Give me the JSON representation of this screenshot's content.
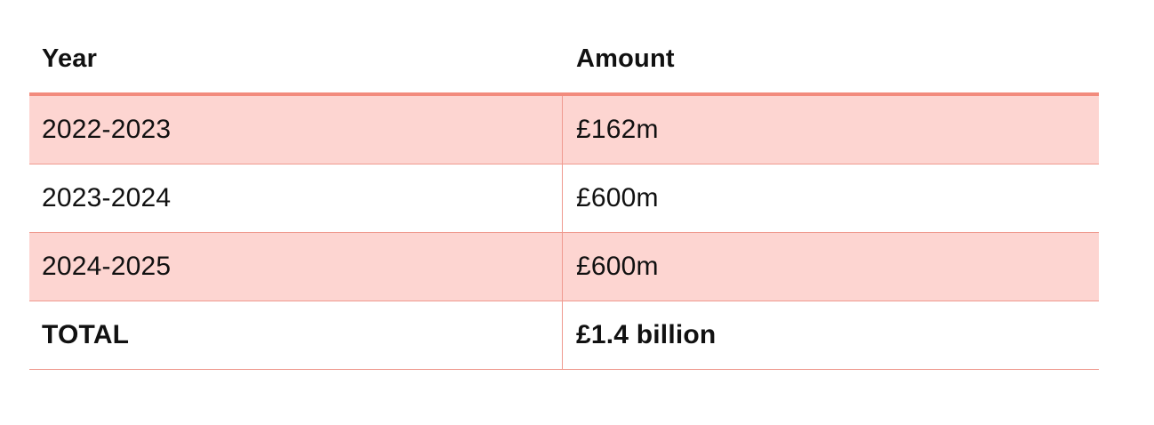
{
  "table": {
    "headers": {
      "year": "Year",
      "amount": "Amount"
    },
    "rows": [
      {
        "year": "2022-2023",
        "amount": "£162m",
        "shaded": true
      },
      {
        "year": "2023-2024",
        "amount": "£600m",
        "shaded": false
      },
      {
        "year": "2024-2025",
        "amount": "£600m",
        "shaded": true
      }
    ],
    "total": {
      "label": "TOTAL",
      "amount": "£1.4 billion"
    }
  },
  "colors": {
    "header_rule": "#f28b7d",
    "row_shade": "#fdd5d1",
    "grid_line": "#ef9a8f"
  }
}
